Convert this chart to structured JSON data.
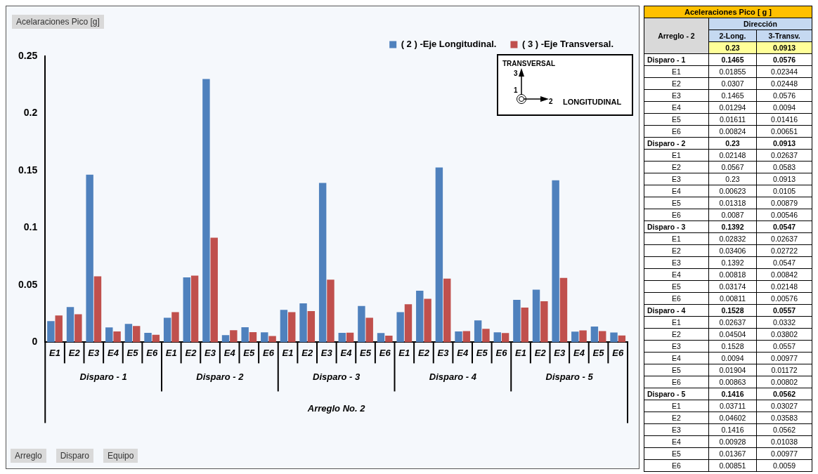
{
  "chart_data": [
    {
      "type": "bar",
      "ylabel": "Acelaraciones Pico [g]",
      "categories": [
        "E1",
        "E2",
        "E3",
        "E4",
        "E5",
        "E6",
        "E1",
        "E2",
        "E3",
        "E4",
        "E5",
        "E6",
        "E1",
        "E2",
        "E3",
        "E4",
        "E5",
        "E6",
        "E1",
        "E2",
        "E3",
        "E4",
        "E5",
        "E6",
        "E1",
        "E2",
        "E3",
        "E4",
        "E5",
        "E6"
      ],
      "series": [
        {
          "name": "( 2 ) -Eje Longitudinal.",
          "color": "#4f81bd",
          "values": [
            0.01855,
            0.0307,
            0.1465,
            0.01294,
            0.01611,
            0.00824,
            0.02148,
            0.0567,
            0.23,
            0.00623,
            0.01318,
            0.0087,
            0.02832,
            0.03406,
            0.1392,
            0.00818,
            0.03174,
            0.00811,
            0.02637,
            0.04504,
            0.1528,
            0.0094,
            0.01904,
            0.00863,
            0.03711,
            0.04602,
            0.1416,
            0.00928,
            0.01367,
            0.00851
          ]
        },
        {
          "name": "( 3 ) -Eje Transversal.",
          "color": "#c0504d",
          "values": [
            0.02344,
            0.02448,
            0.0576,
            0.0094,
            0.01416,
            0.00651,
            0.02637,
            0.0583,
            0.0913,
            0.0105,
            0.00879,
            0.00546,
            0.02637,
            0.02722,
            0.0547,
            0.00842,
            0.02148,
            0.00576,
            0.0332,
            0.03802,
            0.0557,
            0.00977,
            0.01172,
            0.00802,
            0.03027,
            0.03583,
            0.0562,
            0.01038,
            0.00977,
            0.0059
          ]
        }
      ],
      "ylim": [
        0,
        0.25
      ],
      "yticks": [
        0,
        0.05,
        0.1,
        0.15,
        0.2,
        0.25
      ],
      "grid": false,
      "legend": "top right",
      "annotations": [
        "Disparo - 1",
        "Disparo - 2",
        "Disparo - 3",
        "Disparo - 4",
        "Disparo - 5",
        "Arreglo No. 2",
        "Arreglo",
        "Disparo",
        "Equipo",
        "TRANSVERSAL",
        "3",
        "1",
        "2",
        "LONGITUDINAL"
      ]
    },
    {
      "type": "other",
      "title": "Aceleraciones Pico [ g ]",
      "categories": [
        "Disparo - 1",
        "E1",
        "E2",
        "E3",
        "E4",
        "E5",
        "E6",
        "Disparo - 2",
        "E1",
        "E2",
        "E3",
        "E4",
        "E5",
        "E6",
        "Disparo - 3",
        "E1",
        "E2",
        "E3",
        "E4",
        "E5",
        "E6",
        "Disparo - 4",
        "E1",
        "E2",
        "E3",
        "E4",
        "E5",
        "E6",
        "Disparo - 5",
        "E1",
        "E2",
        "E3",
        "E4",
        "E5",
        "E6"
      ],
      "series": [
        {
          "name": "2-Long.",
          "values": [
            0.1465,
            0.01855,
            0.0307,
            0.1465,
            0.01294,
            0.01611,
            0.00824,
            0.23,
            0.02148,
            0.0567,
            0.23,
            0.00623,
            0.01318,
            0.0087,
            0.1392,
            0.02832,
            0.03406,
            0.1392,
            0.00818,
            0.03174,
            0.00811,
            0.1528,
            0.02637,
            0.04504,
            0.1528,
            0.0094,
            0.01904,
            0.00863,
            0.1416,
            0.03711,
            0.04602,
            0.1416,
            0.00928,
            0.01367,
            0.00851
          ]
        },
        {
          "name": "3-Transv.",
          "values": [
            0.0576,
            0.02344,
            0.02448,
            0.0576,
            0.0094,
            0.01416,
            0.00651,
            0.0913,
            0.02637,
            0.0583,
            0.0913,
            0.0105,
            0.00879,
            0.00546,
            0.0547,
            0.02637,
            0.02722,
            0.0547,
            0.00842,
            0.02148,
            0.00576,
            0.0557,
            0.0332,
            0.03802,
            0.0557,
            0.00977,
            0.01172,
            0.00802,
            0.0562,
            0.03027,
            0.03583,
            0.0562,
            0.01038,
            0.00977,
            0.0059
          ]
        }
      ],
      "data_labels": true,
      "annotations": [
        "Dirección",
        "Arreglo - 2",
        "0.23",
        "0.0913"
      ]
    }
  ]
}
